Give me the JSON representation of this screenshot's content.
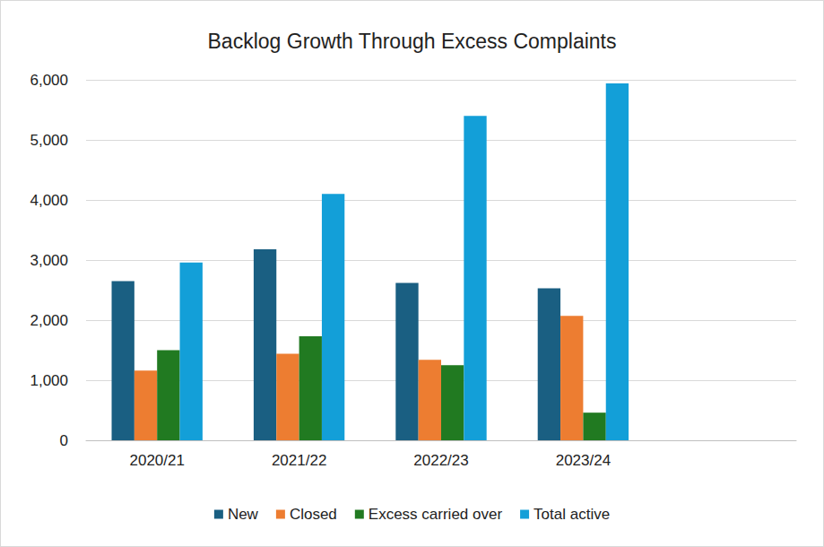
{
  "chart_data": {
    "type": "bar",
    "title": "Backlog Growth Through Excess Complaints",
    "categories": [
      "2020/21",
      "2021/22",
      "2022/23",
      "2023/24",
      null
    ],
    "series": [
      {
        "name": "New",
        "color": "#1a5f82",
        "values": [
          2650,
          3180,
          2620,
          2530,
          null
        ]
      },
      {
        "name": "Closed",
        "color": "#ed7d31",
        "values": [
          1160,
          1440,
          1340,
          2070,
          null
        ]
      },
      {
        "name": "Excess carried over",
        "color": "#217a21",
        "values": [
          1500,
          1730,
          1250,
          460,
          null
        ]
      },
      {
        "name": "Total active",
        "color": "#139fd8",
        "values": [
          2960,
          4100,
          5400,
          5940,
          null
        ]
      }
    ],
    "ylim": [
      0,
      6000
    ],
    "yticks": [
      0,
      {
        "value": 1000,
        "label": "1,000"
      },
      {
        "value": 2000,
        "label": "2,000"
      },
      {
        "value": 3000,
        "label": "3,000"
      },
      {
        "value": 4000,
        "label": "4,000"
      },
      {
        "value": 5000,
        "label": "5,000"
      },
      {
        "value": 6000,
        "label": "6,000"
      }
    ],
    "grid": true,
    "legend": "bottom"
  }
}
